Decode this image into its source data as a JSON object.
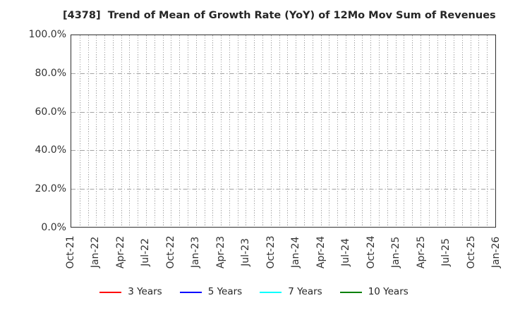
{
  "title": "[4378]  Trend of Mean of Growth Rate (YoY) of 12Mo Mov Sum of Revenues",
  "chart_data": {
    "type": "line",
    "title": "[4378]  Trend of Mean of Growth Rate (YoY) of 12Mo Mov Sum of Revenues",
    "xlabel": "",
    "ylabel": "",
    "x_tick_labels": [
      "Oct-21",
      "Jan-22",
      "Apr-22",
      "Jul-22",
      "Oct-22",
      "Jan-23",
      "Apr-23",
      "Jul-23",
      "Oct-23",
      "Jan-24",
      "Apr-24",
      "Jul-24",
      "Oct-24",
      "Jan-25",
      "Apr-25",
      "Jul-25",
      "Oct-25",
      "Jan-26"
    ],
    "x_tick_interval_months": 3,
    "months_span": 51,
    "minor_vertical_gridlines": "monthly",
    "y_tick_labels": [
      "0.0%",
      "20.0%",
      "40.0%",
      "60.0%",
      "80.0%",
      "100.0%"
    ],
    "ylim": [
      0,
      100
    ],
    "grid": "on",
    "legend_position": "bottom-center",
    "series": [
      {
        "name": "3 Years",
        "color": "#ff0000",
        "values": []
      },
      {
        "name": "5 Years",
        "color": "#0000ff",
        "values": []
      },
      {
        "name": "7 Years",
        "color": "#00ffff",
        "values": []
      },
      {
        "name": "10 Years",
        "color": "#008000",
        "values": []
      }
    ],
    "note": "No data lines are plotted; plot area shows only the empty grid."
  },
  "colors": {
    "background": "#ffffff",
    "grid": "#a3a3a3",
    "spine": "#2f2f2f",
    "title_text": "#262626",
    "tick_text": "#333333"
  }
}
